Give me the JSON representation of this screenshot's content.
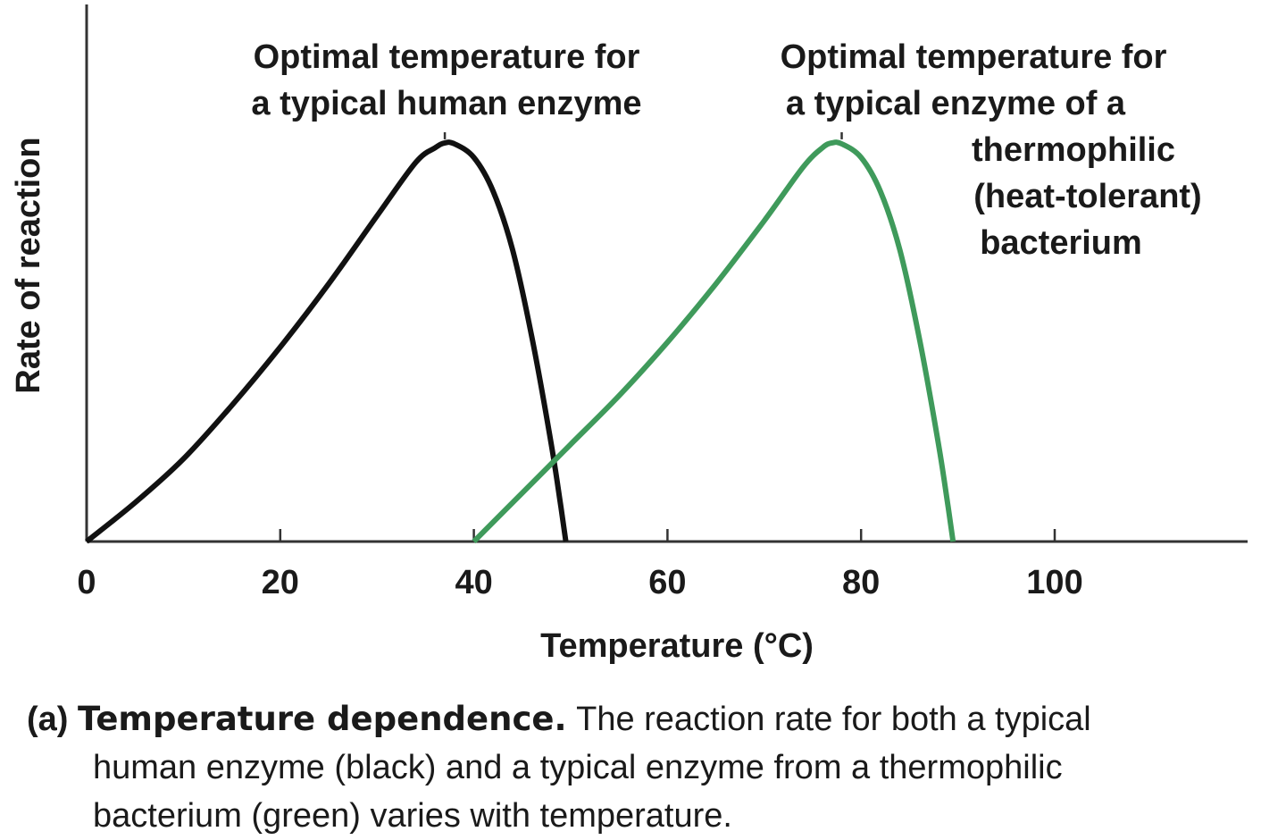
{
  "chart_data": {
    "type": "line",
    "title": "",
    "xlabel": "Temperature (°C)",
    "ylabel": "Rate of reaction",
    "xlim": [
      0,
      120
    ],
    "ylim": [
      0,
      1
    ],
    "xticks": [
      0,
      20,
      40,
      60,
      80,
      100
    ],
    "xtick_labels": [
      "0",
      "20",
      "40",
      "60",
      "80",
      "100"
    ],
    "grid": false,
    "series": [
      {
        "name": "typical human enzyme",
        "color": "#111111",
        "x": [
          0,
          5,
          10,
          15,
          20,
          25,
          30,
          34,
          36,
          37,
          38,
          40,
          42,
          44,
          46,
          48,
          49,
          49.5
        ],
        "y": [
          0,
          0.08,
          0.17,
          0.28,
          0.4,
          0.53,
          0.67,
          0.78,
          0.81,
          0.82,
          0.818,
          0.79,
          0.72,
          0.6,
          0.42,
          0.2,
          0.07,
          0
        ]
      },
      {
        "name": "typical enzyme of a thermophilic bacterium",
        "color": "#3f9a5b",
        "x": [
          40,
          45,
          50,
          55,
          60,
          65,
          70,
          74,
          76,
          77,
          78,
          80,
          82,
          84,
          86,
          88,
          89,
          89.5
        ],
        "y": [
          0,
          0.1,
          0.2,
          0.3,
          0.41,
          0.53,
          0.66,
          0.77,
          0.81,
          0.82,
          0.818,
          0.79,
          0.72,
          0.6,
          0.42,
          0.2,
          0.07,
          0
        ]
      }
    ],
    "annotations": [
      {
        "target": "human-peak",
        "x": 37,
        "lines": [
          "Optimal temperature for",
          "a typical human enzyme"
        ]
      },
      {
        "target": "thermophile-peak",
        "x": 78,
        "lines": [
          "Optimal temperature for",
          "a typical enzyme of a",
          "thermophilic",
          "(heat-tolerant)",
          "bacterium"
        ]
      }
    ]
  },
  "caption": {
    "label": "(a)",
    "title": "Temperature dependence.",
    "body_line1": "The reaction rate for both a typical",
    "body_line2": "human enzyme (black) and a typical enzyme from a thermophilic",
    "body_line3": "bacterium (green) varies with temperature."
  }
}
